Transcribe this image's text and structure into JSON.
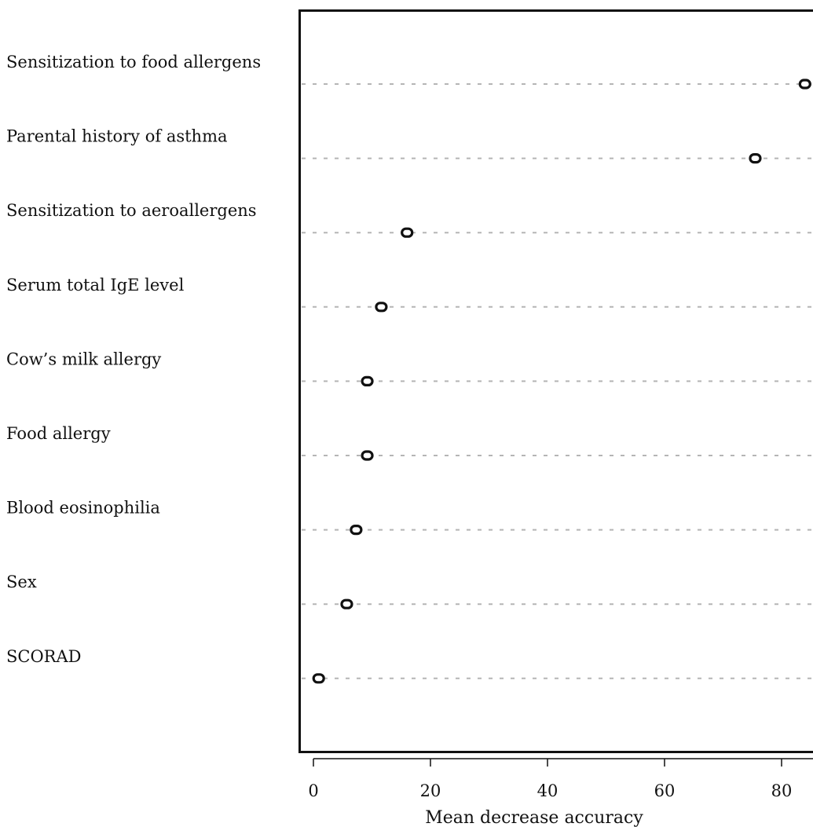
{
  "chart_data": {
    "type": "scatter",
    "categories": [
      "Sensitization to food allergens",
      "Parental history of asthma",
      "Sensitization to aeroallergens",
      "Serum total IgE level",
      "Cow’s milk allergy",
      "Food allergy",
      "Blood eosinophilia",
      "Sex",
      "SCORAD"
    ],
    "values": [
      84,
      75.5,
      16,
      11.6,
      9.2,
      9.2,
      7.3,
      5.7,
      0.9
    ],
    "title": "",
    "xlabel": "Mean decrease accuracy",
    "ylabel": "",
    "xticks": [
      0,
      20,
      40,
      60,
      80
    ],
    "xlim": [
      0,
      85
    ],
    "grid": "dotted horizontal guide lines",
    "marker": "open circle",
    "colors": {
      "ink": "#111111",
      "guide": "#b5b5b5",
      "background": "#ffffff"
    }
  }
}
